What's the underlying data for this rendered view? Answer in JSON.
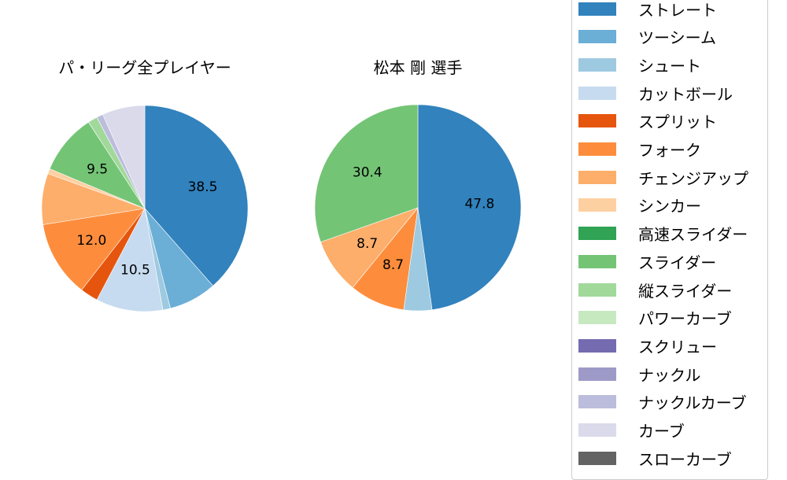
{
  "chart_data": [
    {
      "type": "pie",
      "title": "パ・リーグ全プレイヤー",
      "labels": [
        "ストレート",
        "ツーシーム",
        "シュート",
        "カットボール",
        "スプリット",
        "フォーク",
        "チェンジアップ",
        "シンカー",
        "スライダー",
        "縦スライダー",
        "ナックルカーブ",
        "カーブ"
      ],
      "values": [
        38.5,
        7.5,
        1.2,
        10.5,
        2.8,
        12.0,
        8.0,
        0.8,
        9.5,
        1.5,
        1.0,
        6.7
      ],
      "shown_labels": [
        "38.5",
        "",
        "",
        "10.5",
        "",
        "12.0",
        "",
        "",
        "9.5",
        "",
        "",
        ""
      ],
      "colors": [
        "#3182bd",
        "#6baed6",
        "#9ecae1",
        "#c6dbef",
        "#e6550d",
        "#fd8d3c",
        "#fdae6b",
        "#fdd0a2",
        "#74c476",
        "#a1d99b",
        "#bcbddc",
        "#dadaeb"
      ],
      "center": [
        184,
        265
      ],
      "radius": 131
    },
    {
      "type": "pie",
      "title": "松本 剛  選手",
      "labels": [
        "ストレート",
        "シュート",
        "フォーク",
        "チェンジアップ",
        "スライダー"
      ],
      "values": [
        47.8,
        4.4,
        8.7,
        8.7,
        30.4
      ],
      "shown_labels": [
        "47.8",
        "",
        "8.7",
        "8.7",
        "30.4"
      ],
      "colors": [
        "#3182bd",
        "#9ecae1",
        "#fd8d3c",
        "#fdae6b",
        "#74c476"
      ],
      "center": [
        531,
        264
      ],
      "radius": 131
    }
  ],
  "legend": {
    "items": [
      {
        "label": "ストレート",
        "color": "#3182bd"
      },
      {
        "label": "ツーシーム",
        "color": "#6baed6"
      },
      {
        "label": "シュート",
        "color": "#9ecae1"
      },
      {
        "label": "カットボール",
        "color": "#c6dbef"
      },
      {
        "label": "スプリット",
        "color": "#e6550d"
      },
      {
        "label": "フォーク",
        "color": "#fd8d3c"
      },
      {
        "label": "チェンジアップ",
        "color": "#fdae6b"
      },
      {
        "label": "シンカー",
        "color": "#fdd0a2"
      },
      {
        "label": "高速スライダー",
        "color": "#31a354"
      },
      {
        "label": "スライダー",
        "color": "#74c476"
      },
      {
        "label": "縦スライダー",
        "color": "#a1d99b"
      },
      {
        "label": "パワーカーブ",
        "color": "#c7e9c0"
      },
      {
        "label": "スクリュー",
        "color": "#756bb1"
      },
      {
        "label": "ナックル",
        "color": "#9e9ac8"
      },
      {
        "label": "ナックルカーブ",
        "color": "#bcbddc"
      },
      {
        "label": "カーブ",
        "color": "#dadaeb"
      },
      {
        "label": "スローカーブ",
        "color": "#636363"
      }
    ]
  }
}
